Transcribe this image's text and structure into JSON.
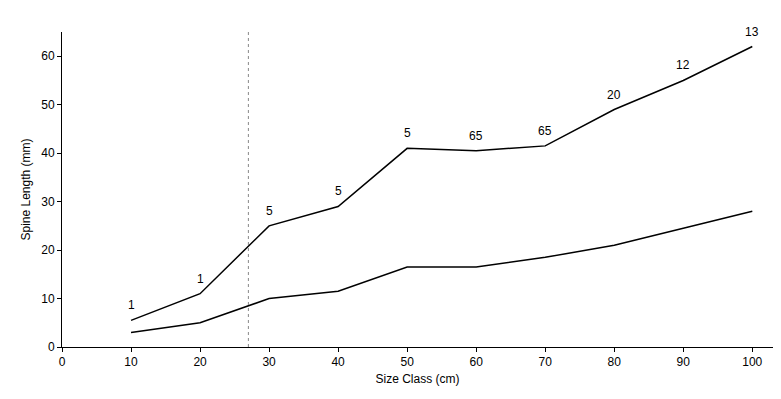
{
  "chart_data": {
    "type": "line",
    "x_label": "Size Class (cm)",
    "y_label": "Spine Length (mm)",
    "x": [
      10,
      20,
      30,
      40,
      50,
      60,
      70,
      80,
      90,
      100
    ],
    "series": [
      {
        "color": "#000000",
        "line_style": "solid",
        "values": [
          5.5,
          11,
          25,
          29,
          41,
          40.5,
          41.5,
          49,
          55,
          62
        ]
      },
      {
        "color": "#000000",
        "line_style": "solid",
        "values": [
          3,
          5,
          10,
          11.5,
          16.5,
          16.5,
          18.5,
          21,
          24.5,
          28
        ]
      }
    ],
    "annotations": [
      {
        "x": 10,
        "text": "1"
      },
      {
        "x": 20,
        "text": "1"
      },
      {
        "x": 30,
        "text": "5"
      },
      {
        "x": 40,
        "text": "5"
      },
      {
        "x": 50,
        "text": "5"
      },
      {
        "x": 60,
        "text": "65"
      },
      {
        "x": 70,
        "text": "65"
      },
      {
        "x": 80,
        "text": "20"
      },
      {
        "x": 90,
        "text": "12"
      },
      {
        "x": 100,
        "text": "13"
      }
    ],
    "vline": {
      "x": 27,
      "color": "#888888",
      "line_style": "dotted"
    },
    "xlim": [
      0,
      103
    ],
    "xticks": [
      0,
      10,
      20,
      30,
      40,
      50,
      60,
      70,
      80,
      90,
      100
    ],
    "ylim": [
      0,
      65
    ],
    "yticks": [
      0,
      10,
      20,
      30,
      40,
      50,
      60
    ],
    "grid": false
  }
}
